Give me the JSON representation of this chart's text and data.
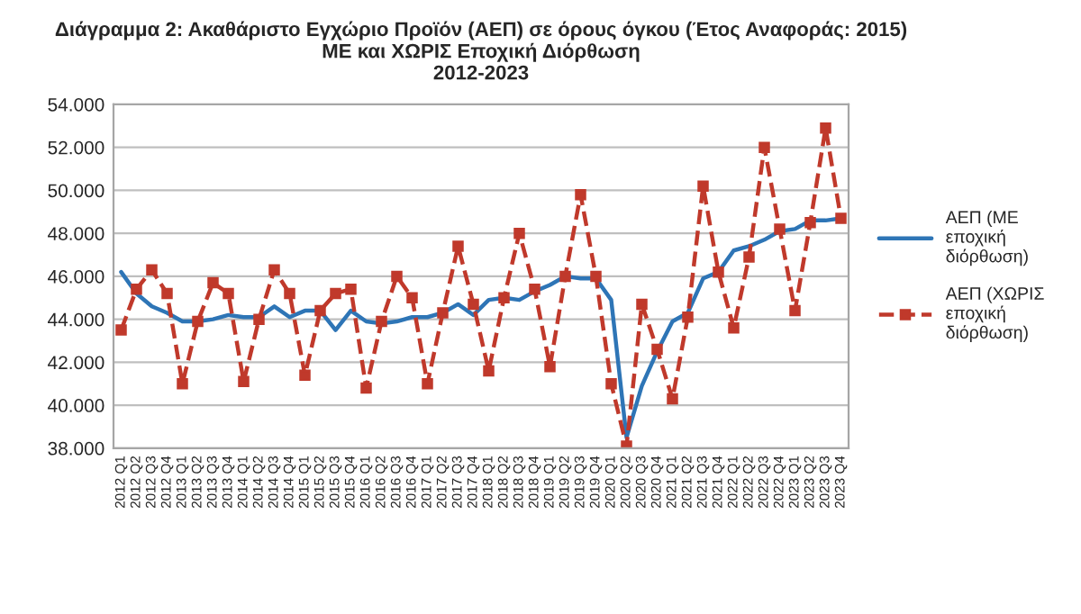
{
  "chart_data": {
    "type": "line",
    "title": "Διάγραμμα 2: Ακαθάριστο Εγχώριο Προϊόν (ΑΕΠ) σε όρους όγκου (Έτος Αναφοράς: 2015)\nΜΕ και ΧΩΡΙΣ Εποχική Διόρθωση\n2012-2023",
    "categories": [
      "2012 Q1",
      "2012 Q2",
      "2012 Q3",
      "2012 Q4",
      "2013 Q1",
      "2013 Q2",
      "2013 Q3",
      "2013 Q4",
      "2014 Q1",
      "2014 Q2",
      "2014 Q3",
      "2014 Q4",
      "2015 Q1",
      "2015 Q2",
      "2015 Q3",
      "2015 Q4",
      "2016 Q1",
      "2016 Q2",
      "2016 Q3",
      "2016 Q4",
      "2017 Q1",
      "2017 Q2",
      "2017 Q3",
      "2017 Q4",
      "2018 Q1",
      "2018 Q2",
      "2018 Q3",
      "2018 Q4",
      "2019 Q1",
      "2019 Q2",
      "2019 Q3",
      "2019 Q4",
      "2020 Q1",
      "2020 Q2",
      "2020 Q3",
      "2020 Q4",
      "2021 Q1",
      "2021 Q2",
      "2021 Q3",
      "2021 Q4",
      "2022 Q1",
      "2022 Q2",
      "2022 Q3",
      "2022 Q4",
      "2023 Q1",
      "2023 Q2",
      "2023 Q3",
      "2023 Q4"
    ],
    "series": [
      {
        "name": "ΑΕΠ (ΜΕ εποχική διόρθωση)",
        "color": "#2e75b6",
        "line_style": "solid",
        "marker": "none",
        "values": [
          46.2,
          45.2,
          44.6,
          44.3,
          43.9,
          43.9,
          44.0,
          44.2,
          44.1,
          44.1,
          44.6,
          44.1,
          44.4,
          44.4,
          43.5,
          44.4,
          43.9,
          43.8,
          43.9,
          44.1,
          44.1,
          44.3,
          44.7,
          44.2,
          44.9,
          45.0,
          44.9,
          45.3,
          45.6,
          46.0,
          45.9,
          45.9,
          44.9,
          38.5,
          40.9,
          42.5,
          43.9,
          44.3,
          45.9,
          46.2,
          47.2,
          47.4,
          47.7,
          48.1,
          48.2,
          48.6,
          48.6,
          48.7
        ]
      },
      {
        "name": "ΑΕΠ (ΧΩΡΙΣ εποχική διόρθωση)",
        "color": "#c0392b",
        "line_style": "dashed",
        "marker": "square",
        "values": [
          43.5,
          45.4,
          46.3,
          45.2,
          41.0,
          43.9,
          45.7,
          45.2,
          41.1,
          44.0,
          46.3,
          45.2,
          41.4,
          44.4,
          45.2,
          45.4,
          40.8,
          43.9,
          46.0,
          45.0,
          41.0,
          44.3,
          47.4,
          44.7,
          41.6,
          45.0,
          48.0,
          45.4,
          41.8,
          46.0,
          49.8,
          46.0,
          41.0,
          38.1,
          44.7,
          42.6,
          40.3,
          44.1,
          50.2,
          46.2,
          43.6,
          46.9,
          52.0,
          48.2,
          44.4,
          48.5,
          52.9,
          48.7
        ]
      }
    ],
    "ylim": [
      38,
      54
    ],
    "yticks": [
      {
        "value": 38,
        "label": "38.000"
      },
      {
        "value": 40,
        "label": "40.000"
      },
      {
        "value": 42,
        "label": "42.000"
      },
      {
        "value": 44,
        "label": "44.000"
      },
      {
        "value": 46,
        "label": "46.000"
      },
      {
        "value": 48,
        "label": "48.000"
      },
      {
        "value": 50,
        "label": "50.000"
      },
      {
        "value": 52,
        "label": "52.000"
      },
      {
        "value": 54,
        "label": "54.000"
      }
    ],
    "grid": "y",
    "legend": "right"
  }
}
